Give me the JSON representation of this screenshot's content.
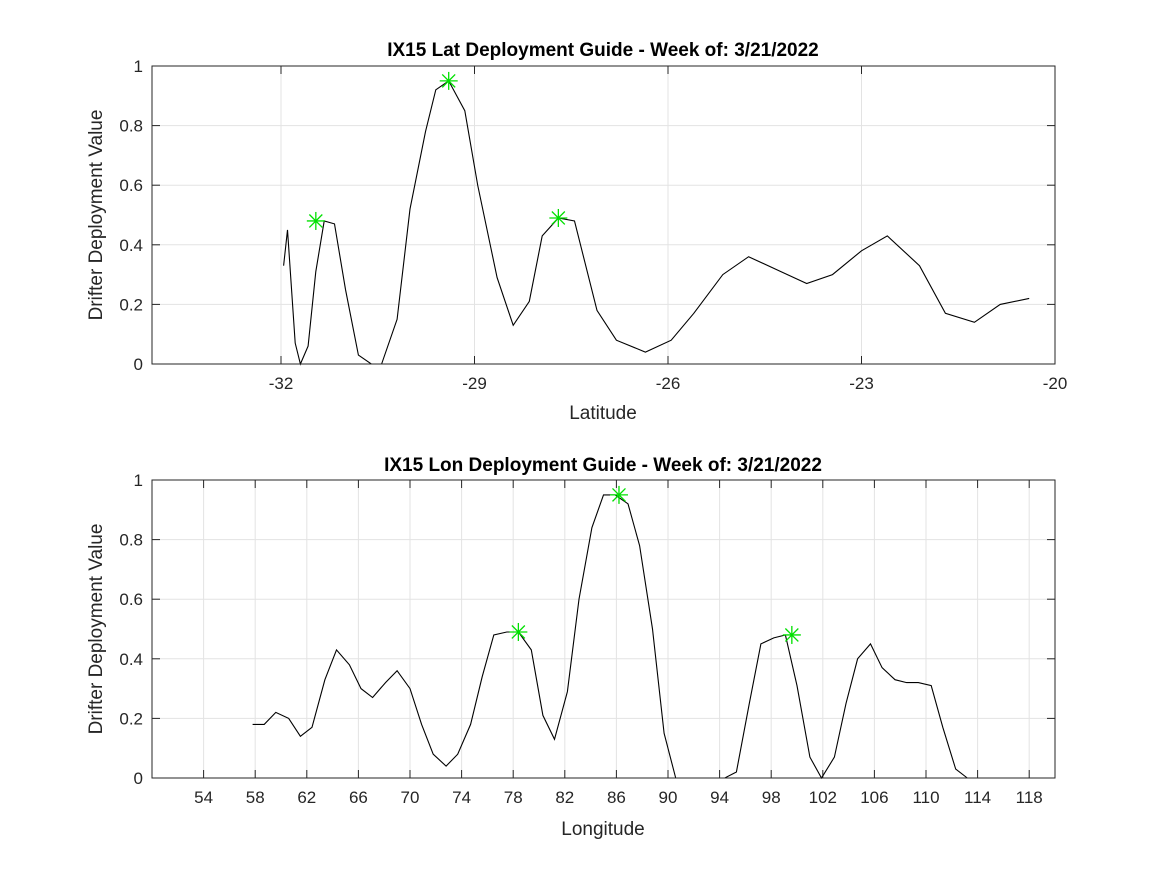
{
  "chart_data": [
    {
      "type": "line",
      "title": "IX15 Lat Deployment Guide - Week of: 3/21/2022",
      "xlabel": "Latitude",
      "ylabel": "Drifter Deployment Value",
      "xlim": [
        -34.0,
        -20.0
      ],
      "ylim": [
        0,
        1
      ],
      "grid": true,
      "xticks": [
        -32,
        -29,
        -26,
        -23,
        -20
      ],
      "xtick_labels": [
        "-32",
        "-29",
        "-26",
        "-23",
        "-20"
      ],
      "yticks": [
        0,
        0.2,
        0.4,
        0.6,
        0.8,
        1
      ],
      "ytick_labels": [
        "0",
        "0.2",
        "0.4",
        "0.6",
        "0.8",
        "1"
      ],
      "series": [
        {
          "x": [
            -31.96,
            -31.9,
            -31.78,
            -31.7,
            -31.58,
            -31.46,
            -31.33,
            -31.17,
            -31.0,
            -30.8,
            -30.6,
            -30.44,
            -30.2,
            -30.0,
            -29.76,
            -29.6,
            -29.4,
            -29.15,
            -28.95,
            -28.65,
            -28.4,
            -28.15,
            -27.95,
            -27.7,
            -27.45,
            -27.1,
            -26.8,
            -26.35,
            -25.95,
            -25.6,
            -25.15,
            -24.75,
            -24.25,
            -23.85,
            -23.45,
            -23.0,
            -22.6,
            -22.1,
            -21.7,
            -21.25,
            -20.85,
            -20.4
          ],
          "y": [
            0.33,
            0.45,
            0.07,
            0.0,
            0.06,
            0.31,
            0.48,
            0.47,
            0.25,
            0.03,
            0.0,
            0.0,
            0.15,
            0.52,
            0.78,
            0.92,
            0.95,
            0.85,
            0.6,
            0.29,
            0.13,
            0.21,
            0.43,
            0.49,
            0.48,
            0.18,
            0.08,
            0.04,
            0.08,
            0.17,
            0.3,
            0.36,
            0.31,
            0.27,
            0.3,
            0.38,
            0.43,
            0.33,
            0.17,
            0.14,
            0.2,
            0.22
          ]
        }
      ],
      "peaks": {
        "x": [
          -31.46,
          -29.4,
          -27.7
        ],
        "y": [
          0.48,
          0.95,
          0.49
        ]
      },
      "peak_color": "#00e000"
    },
    {
      "type": "line",
      "title": "IX15 Lon Deployment Guide - Week of: 3/21/2022",
      "xlabel": "Longitude",
      "ylabel": "Drifter Deployment Value",
      "xlim": [
        50,
        120
      ],
      "ylim": [
        0,
        1
      ],
      "grid": true,
      "xticks": [
        54,
        58,
        62,
        66,
        70,
        74,
        78,
        82,
        86,
        90,
        94,
        98,
        102,
        106,
        110,
        114,
        118
      ],
      "xtick_labels": [
        "54",
        "58",
        "62",
        "66",
        "70",
        "74",
        "78",
        "82",
        "86",
        "90",
        "94",
        "98",
        "102",
        "106",
        "110",
        "114",
        "118"
      ],
      "yticks": [
        0,
        0.2,
        0.4,
        0.6,
        0.8,
        1
      ],
      "ytick_labels": [
        "0",
        "0.2",
        "0.4",
        "0.6",
        "0.8",
        "1"
      ],
      "series": [
        {
          "x": [
            57.8,
            58.7,
            59.6,
            60.6,
            61.5,
            62.4,
            63.4,
            64.3,
            65.3,
            66.2,
            67.1,
            68.1,
            69.0,
            70.0,
            70.9,
            71.8,
            72.8,
            73.7,
            74.7,
            75.6,
            76.5,
            77.5,
            78.4,
            79.4,
            80.3,
            81.2,
            82.2,
            83.1,
            84.1,
            85.0,
            85.9,
            86.9,
            87.8,
            88.8,
            89.7,
            90.6,
            91.6,
            92.5,
            93.5,
            94.4,
            95.3,
            96.3,
            97.2,
            98.2,
            99.1,
            100.0,
            101.0,
            101.9,
            102.9,
            103.8,
            104.7,
            105.7,
            106.6,
            107.6,
            108.5,
            109.4,
            110.4,
            111.3,
            112.3,
            113.2,
            114.1
          ],
          "y": [
            0.18,
            0.18,
            0.22,
            0.2,
            0.14,
            0.17,
            0.33,
            0.43,
            0.38,
            0.3,
            0.27,
            0.32,
            0.36,
            0.3,
            0.18,
            0.08,
            0.04,
            0.08,
            0.18,
            0.34,
            0.48,
            0.49,
            0.49,
            0.43,
            0.21,
            0.13,
            0.29,
            0.6,
            0.84,
            0.95,
            0.95,
            0.92,
            0.78,
            0.5,
            0.15,
            0.0,
            0.0,
            0.0,
            0.0,
            0.0,
            0.02,
            0.25,
            0.45,
            0.47,
            0.48,
            0.31,
            0.07,
            0.0,
            0.07,
            0.25,
            0.4,
            0.45,
            0.37,
            0.33,
            0.32,
            0.32,
            0.31,
            0.17,
            0.03,
            0.0,
            0.0
          ]
        }
      ],
      "peaks": {
        "x": [
          78.4,
          86.2,
          99.6
        ],
        "y": [
          0.49,
          0.95,
          0.48
        ]
      },
      "peak_color": "#00e000"
    }
  ]
}
